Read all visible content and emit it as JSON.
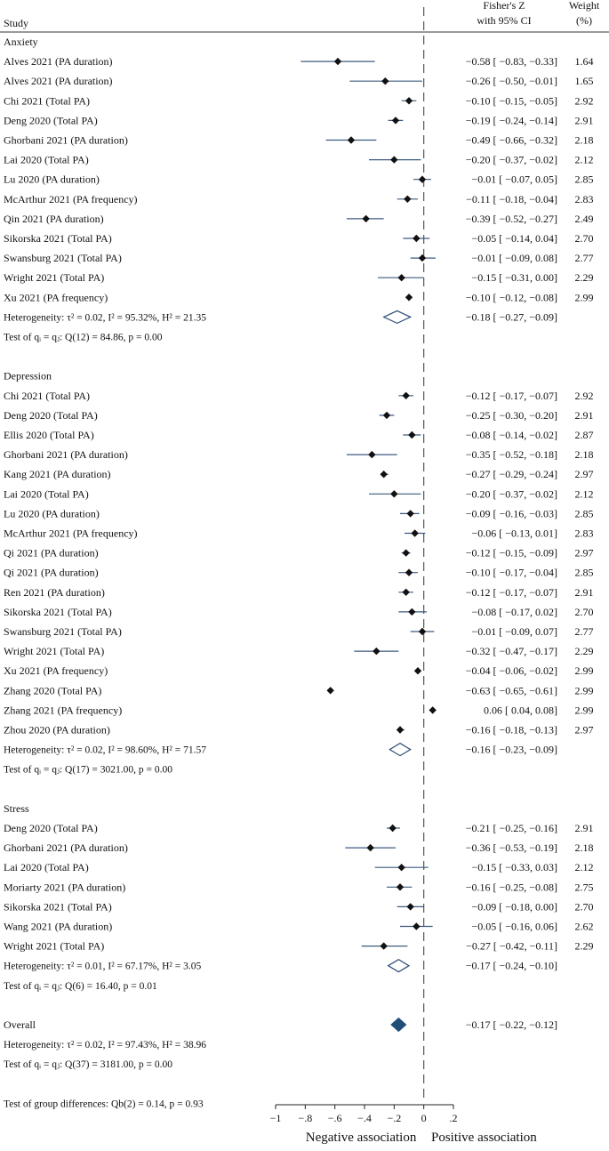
{
  "chart_data": {
    "type": "forest",
    "header": {
      "study": "Study",
      "effect_line1": "Fisher's Z",
      "effect_line2": "with 95% CI",
      "weight_line1": "Weight",
      "weight_line2": "(%)"
    },
    "xlim": [
      -1,
      0.2
    ],
    "xticks": [
      -1,
      -0.8,
      -0.6,
      -0.4,
      -0.2,
      0,
      0.2
    ],
    "xtick_labels": [
      "−1",
      "−.8",
      "−.6",
      "−.4",
      "−.2",
      "0",
      ".2"
    ],
    "xlabel_left": "Negative association",
    "xlabel_right": "Positive association",
    "rows": [
      {
        "kind": "group",
        "label": "Anxiety"
      },
      {
        "kind": "study",
        "label": "Alves 2021 (PA duration)",
        "est": -0.58,
        "lo": -0.83,
        "hi": -0.33,
        "weight": 1.64,
        "ci_text": "−0.58 [ −0.83, −0.33]",
        "weight_text": "1.64"
      },
      {
        "kind": "study",
        "label": "Alves 2021 (PA duration)",
        "est": -0.26,
        "lo": -0.5,
        "hi": -0.01,
        "weight": 1.65,
        "ci_text": "−0.26 [ −0.50, −0.01]",
        "weight_text": "1.65"
      },
      {
        "kind": "study",
        "label": "Chi 2021 (Total PA)",
        "est": -0.1,
        "lo": -0.15,
        "hi": -0.05,
        "weight": 2.92,
        "ci_text": "−0.10 [ −0.15, −0.05]",
        "weight_text": "2.92"
      },
      {
        "kind": "study",
        "label": "Deng 2020 (Total PA)",
        "est": -0.19,
        "lo": -0.24,
        "hi": -0.14,
        "weight": 2.91,
        "ci_text": "−0.19 [ −0.24, −0.14]",
        "weight_text": "2.91"
      },
      {
        "kind": "study",
        "label": "Ghorbani 2021 (PA duration)",
        "est": -0.49,
        "lo": -0.66,
        "hi": -0.32,
        "weight": 2.18,
        "ci_text": "−0.49 [ −0.66, −0.32]",
        "weight_text": "2.18"
      },
      {
        "kind": "study",
        "label": "Lai 2020 (Total PA)",
        "est": -0.2,
        "lo": -0.37,
        "hi": -0.02,
        "weight": 2.12,
        "ci_text": "−0.20 [ −0.37, −0.02]",
        "weight_text": "2.12"
      },
      {
        "kind": "study",
        "label": "Lu 2020 (PA duration)",
        "est": -0.01,
        "lo": -0.07,
        "hi": 0.05,
        "weight": 2.85,
        "ci_text": "−0.01 [ −0.07,  0.05]",
        "weight_text": "2.85"
      },
      {
        "kind": "study",
        "label": "McArthur 2021 (PA frequency)",
        "est": -0.11,
        "lo": -0.18,
        "hi": -0.04,
        "weight": 2.83,
        "ci_text": "−0.11 [ −0.18, −0.04]",
        "weight_text": "2.83"
      },
      {
        "kind": "study",
        "label": "Qin 2021 (PA duration)",
        "est": -0.39,
        "lo": -0.52,
        "hi": -0.27,
        "weight": 2.49,
        "ci_text": "−0.39 [ −0.52, −0.27]",
        "weight_text": "2.49"
      },
      {
        "kind": "study",
        "label": "Sikorska 2021 (Total PA)",
        "est": -0.05,
        "lo": -0.14,
        "hi": 0.04,
        "weight": 2.7,
        "ci_text": "−0.05 [ −0.14,  0.04]",
        "weight_text": "2.70"
      },
      {
        "kind": "study",
        "label": "Swansburg 2021 (Total PA)",
        "est": -0.01,
        "lo": -0.09,
        "hi": 0.08,
        "weight": 2.77,
        "ci_text": "−0.01 [ −0.09,  0.08]",
        "weight_text": "2.77"
      },
      {
        "kind": "study",
        "label": "Wright 2021 (Total PA)",
        "est": -0.15,
        "lo": -0.31,
        "hi": 0.0,
        "weight": 2.29,
        "ci_text": "−0.15 [ −0.31,  0.00]",
        "weight_text": "2.29"
      },
      {
        "kind": "study",
        "label": "Xu 2021 (PA frequency)",
        "est": -0.1,
        "lo": -0.12,
        "hi": -0.08,
        "weight": 2.99,
        "ci_text": "−0.10 [ −0.12, −0.08]",
        "weight_text": "2.99"
      },
      {
        "kind": "subtotal",
        "label": "Heterogeneity: τ² = 0.02, I² = 95.32%, H² = 21.35",
        "est": -0.18,
        "lo": -0.27,
        "hi": -0.09,
        "ci_text": "−0.18 [ −0.27, −0.09]"
      },
      {
        "kind": "test",
        "label": "Test of qᵢ = qⱼ: Q(12) = 84.86, p = 0.00"
      },
      {
        "kind": "blank"
      },
      {
        "kind": "group",
        "label": "Depression"
      },
      {
        "kind": "study",
        "label": "Chi 2021 (Total PA)",
        "est": -0.12,
        "lo": -0.17,
        "hi": -0.07,
        "weight": 2.92,
        "ci_text": "−0.12 [ −0.17, −0.07]",
        "weight_text": "2.92"
      },
      {
        "kind": "study",
        "label": "Deng 2020 (Total PA)",
        "est": -0.25,
        "lo": -0.3,
        "hi": -0.2,
        "weight": 2.91,
        "ci_text": "−0.25 [ −0.30, −0.20]",
        "weight_text": "2.91"
      },
      {
        "kind": "study",
        "label": "Ellis 2020 (Total PA)",
        "est": -0.08,
        "lo": -0.14,
        "hi": -0.02,
        "weight": 2.87,
        "ci_text": "−0.08 [ −0.14, −0.02]",
        "weight_text": "2.87"
      },
      {
        "kind": "study",
        "label": "Ghorbani 2021 (PA duration)",
        "est": -0.35,
        "lo": -0.52,
        "hi": -0.18,
        "weight": 2.18,
        "ci_text": "−0.35 [ −0.52, −0.18]",
        "weight_text": "2.18"
      },
      {
        "kind": "study",
        "label": "Kang 2021 (PA duration)",
        "est": -0.27,
        "lo": -0.29,
        "hi": -0.24,
        "weight": 2.97,
        "ci_text": "−0.27 [ −0.29, −0.24]",
        "weight_text": "2.97"
      },
      {
        "kind": "study",
        "label": "Lai 2020 (Total PA)",
        "est": -0.2,
        "lo": -0.37,
        "hi": -0.02,
        "weight": 2.12,
        "ci_text": "−0.20 [ −0.37, −0.02]",
        "weight_text": "2.12"
      },
      {
        "kind": "study",
        "label": "Lu 2020 (PA duration)",
        "est": -0.09,
        "lo": -0.16,
        "hi": -0.03,
        "weight": 2.85,
        "ci_text": "−0.09 [ −0.16, −0.03]",
        "weight_text": "2.85"
      },
      {
        "kind": "study",
        "label": "McArthur 2021 (PA frequency)",
        "est": -0.06,
        "lo": -0.13,
        "hi": 0.01,
        "weight": 2.83,
        "ci_text": "−0.06 [ −0.13,  0.01]",
        "weight_text": "2.83"
      },
      {
        "kind": "study",
        "label": "Qi 2021 (PA duration)",
        "est": -0.12,
        "lo": -0.15,
        "hi": -0.09,
        "weight": 2.97,
        "ci_text": "−0.12 [ −0.15, −0.09]",
        "weight_text": "2.97"
      },
      {
        "kind": "study",
        "label": "Qi 2021 (PA duration)",
        "est": -0.1,
        "lo": -0.17,
        "hi": -0.04,
        "weight": 2.85,
        "ci_text": "−0.10 [ −0.17, −0.04]",
        "weight_text": "2.85"
      },
      {
        "kind": "study",
        "label": "Ren 2021 (PA duration)",
        "est": -0.12,
        "lo": -0.17,
        "hi": -0.07,
        "weight": 2.91,
        "ci_text": "−0.12 [ −0.17, −0.07]",
        "weight_text": "2.91"
      },
      {
        "kind": "study",
        "label": "Sikorska 2021 (Total PA)",
        "est": -0.08,
        "lo": -0.17,
        "hi": 0.02,
        "weight": 2.7,
        "ci_text": "−0.08 [ −0.17,  0.02]",
        "weight_text": "2.70"
      },
      {
        "kind": "study",
        "label": "Swansburg 2021 (Total PA)",
        "est": -0.01,
        "lo": -0.09,
        "hi": 0.07,
        "weight": 2.77,
        "ci_text": "−0.01 [ −0.09,  0.07]",
        "weight_text": "2.77"
      },
      {
        "kind": "study",
        "label": "Wright 2021 (Total PA)",
        "est": -0.32,
        "lo": -0.47,
        "hi": -0.17,
        "weight": 2.29,
        "ci_text": "−0.32 [ −0.47, −0.17]",
        "weight_text": "2.29"
      },
      {
        "kind": "study",
        "label": "Xu 2021 (PA frequency)",
        "est": -0.04,
        "lo": -0.06,
        "hi": -0.02,
        "weight": 2.99,
        "ci_text": "−0.04 [ −0.06, −0.02]",
        "weight_text": "2.99"
      },
      {
        "kind": "study",
        "label": "Zhang 2020 (Total PA)",
        "est": -0.63,
        "lo": -0.65,
        "hi": -0.61,
        "weight": 2.99,
        "ci_text": "−0.63 [ −0.65, −0.61]",
        "weight_text": "2.99"
      },
      {
        "kind": "study",
        "label": "Zhang 2021 (PA frequency)",
        "est": 0.06,
        "lo": 0.04,
        "hi": 0.08,
        "weight": 2.99,
        "ci_text": "0.06 [  0.04,  0.08]",
        "weight_text": "2.99"
      },
      {
        "kind": "study",
        "label": "Zhou 2020 (PA duration)",
        "est": -0.16,
        "lo": -0.18,
        "hi": -0.13,
        "weight": 2.97,
        "ci_text": "−0.16 [ −0.18, −0.13]",
        "weight_text": "2.97"
      },
      {
        "kind": "subtotal",
        "label": "Heterogeneity: τ² = 0.02, I² = 98.60%, H² = 71.57",
        "est": -0.16,
        "lo": -0.23,
        "hi": -0.09,
        "ci_text": "−0.16 [ −0.23, −0.09]"
      },
      {
        "kind": "test",
        "label": "Test of qᵢ = qⱼ: Q(17) = 3021.00, p = 0.00"
      },
      {
        "kind": "blank"
      },
      {
        "kind": "group",
        "label": "Stress"
      },
      {
        "kind": "study",
        "label": "Deng 2020 (Total PA)",
        "est": -0.21,
        "lo": -0.25,
        "hi": -0.16,
        "weight": 2.91,
        "ci_text": "−0.21 [ −0.25, −0.16]",
        "weight_text": "2.91"
      },
      {
        "kind": "study",
        "label": "Ghorbani 2021 (PA duration)",
        "est": -0.36,
        "lo": -0.53,
        "hi": -0.19,
        "weight": 2.18,
        "ci_text": "−0.36 [ −0.53, −0.19]",
        "weight_text": "2.18"
      },
      {
        "kind": "study",
        "label": "Lai 2020 (Total PA)",
        "est": -0.15,
        "lo": -0.33,
        "hi": 0.03,
        "weight": 2.12,
        "ci_text": "−0.15 [ −0.33,  0.03]",
        "weight_text": "2.12"
      },
      {
        "kind": "study",
        "label": "Moriarty 2021 (PA duration)",
        "est": -0.16,
        "lo": -0.25,
        "hi": -0.08,
        "weight": 2.75,
        "ci_text": "−0.16 [ −0.25, −0.08]",
        "weight_text": "2.75"
      },
      {
        "kind": "study",
        "label": "Sikorska 2021 (Total PA)",
        "est": -0.09,
        "lo": -0.18,
        "hi": 0.0,
        "weight": 2.7,
        "ci_text": "−0.09 [ −0.18,  0.00]",
        "weight_text": "2.70"
      },
      {
        "kind": "study",
        "label": "Wang 2021 (PA duration)",
        "est": -0.05,
        "lo": -0.16,
        "hi": 0.06,
        "weight": 2.62,
        "ci_text": "−0.05 [ −0.16,  0.06]",
        "weight_text": "2.62"
      },
      {
        "kind": "study",
        "label": "Wright 2021 (Total PA)",
        "est": -0.27,
        "lo": -0.42,
        "hi": -0.11,
        "weight": 2.29,
        "ci_text": "−0.27 [ −0.42, −0.11]",
        "weight_text": "2.29"
      },
      {
        "kind": "subtotal",
        "label": "Heterogeneity: τ² = 0.01, I² = 67.17%, H² = 3.05",
        "est": -0.17,
        "lo": -0.24,
        "hi": -0.1,
        "ci_text": "−0.17 [ −0.24, −0.10]"
      },
      {
        "kind": "test",
        "label": "Test of qᵢ = qⱼ: Q(6) = 16.40, p = 0.01"
      },
      {
        "kind": "blank"
      },
      {
        "kind": "overall",
        "label": "Overall",
        "est": -0.17,
        "lo": -0.22,
        "hi": -0.12,
        "ci_text": "−0.17 [ −0.22, −0.12]"
      },
      {
        "kind": "test",
        "label": "Heterogeneity: τ² = 0.02, I² = 97.43%, H² = 38.96"
      },
      {
        "kind": "test",
        "label": "Test of qᵢ = qⱼ: Q(37) = 3181.00, p = 0.00"
      },
      {
        "kind": "blank"
      },
      {
        "kind": "test",
        "label": "Test of group differences: Qb(2) = 0.14, p = 0.93"
      }
    ],
    "colors": {
      "ci_line": "#3d5a80",
      "marker": "#111111",
      "subtotal_diamond": "#2a4d77",
      "overall_diamond": "#1f4e79",
      "null_line": "#555555",
      "text": "#111111"
    }
  }
}
